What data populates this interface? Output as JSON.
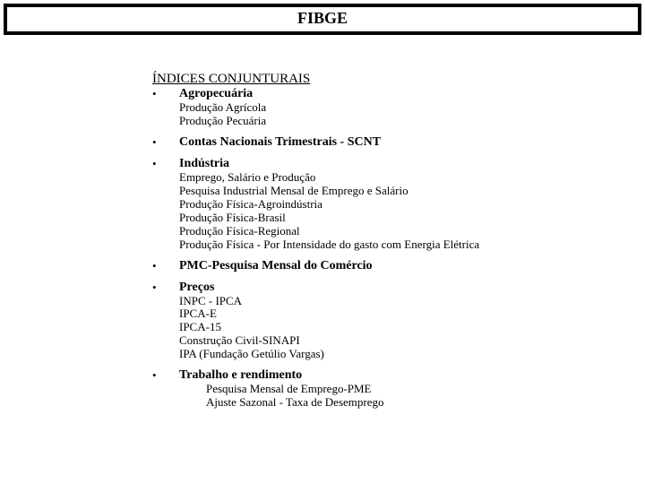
{
  "header": {
    "title": "FIBGE"
  },
  "section_title": "ÍNDICES CONJUNTURAIS",
  "items": [
    {
      "label": "Agropecuária",
      "subs": [
        "Produção Agrícola",
        "Produção Pecuária"
      ],
      "indented": false
    },
    {
      "label": "Contas Nacionais Trimestrais - SCNT",
      "subs": [],
      "indented": false
    },
    {
      "label": "Indústria",
      "subs": [
        "Emprego, Salário e Produção",
        "Pesquisa Industrial Mensal de Emprego e Salário",
        "Produção Física-Agroindústria",
        "Produção Física-Brasil",
        "Produção Física-Regional",
        "Produção Física - Por Intensidade do gasto com Energia Elétrica"
      ],
      "indented": false
    },
    {
      "label": "PMC-Pesquisa Mensal do Comércio",
      "subs": [],
      "indented": false
    },
    {
      "label": "Preços",
      "subs": [
        "INPC - IPCA",
        "IPCA-E",
        "IPCA-15",
        "Construção Civil-SINAPI",
        "IPA (Fundação Getúlio Vargas)"
      ],
      "indented": false
    },
    {
      "label": "Trabalho e rendimento",
      "subs": [
        "Pesquisa Mensal de Emprego-PME",
        "Ajuste Sazonal - Taxa de Desemprego"
      ],
      "indented": true
    }
  ],
  "colors": {
    "background": "#ffffff",
    "text": "#000000",
    "border": "#000000"
  }
}
